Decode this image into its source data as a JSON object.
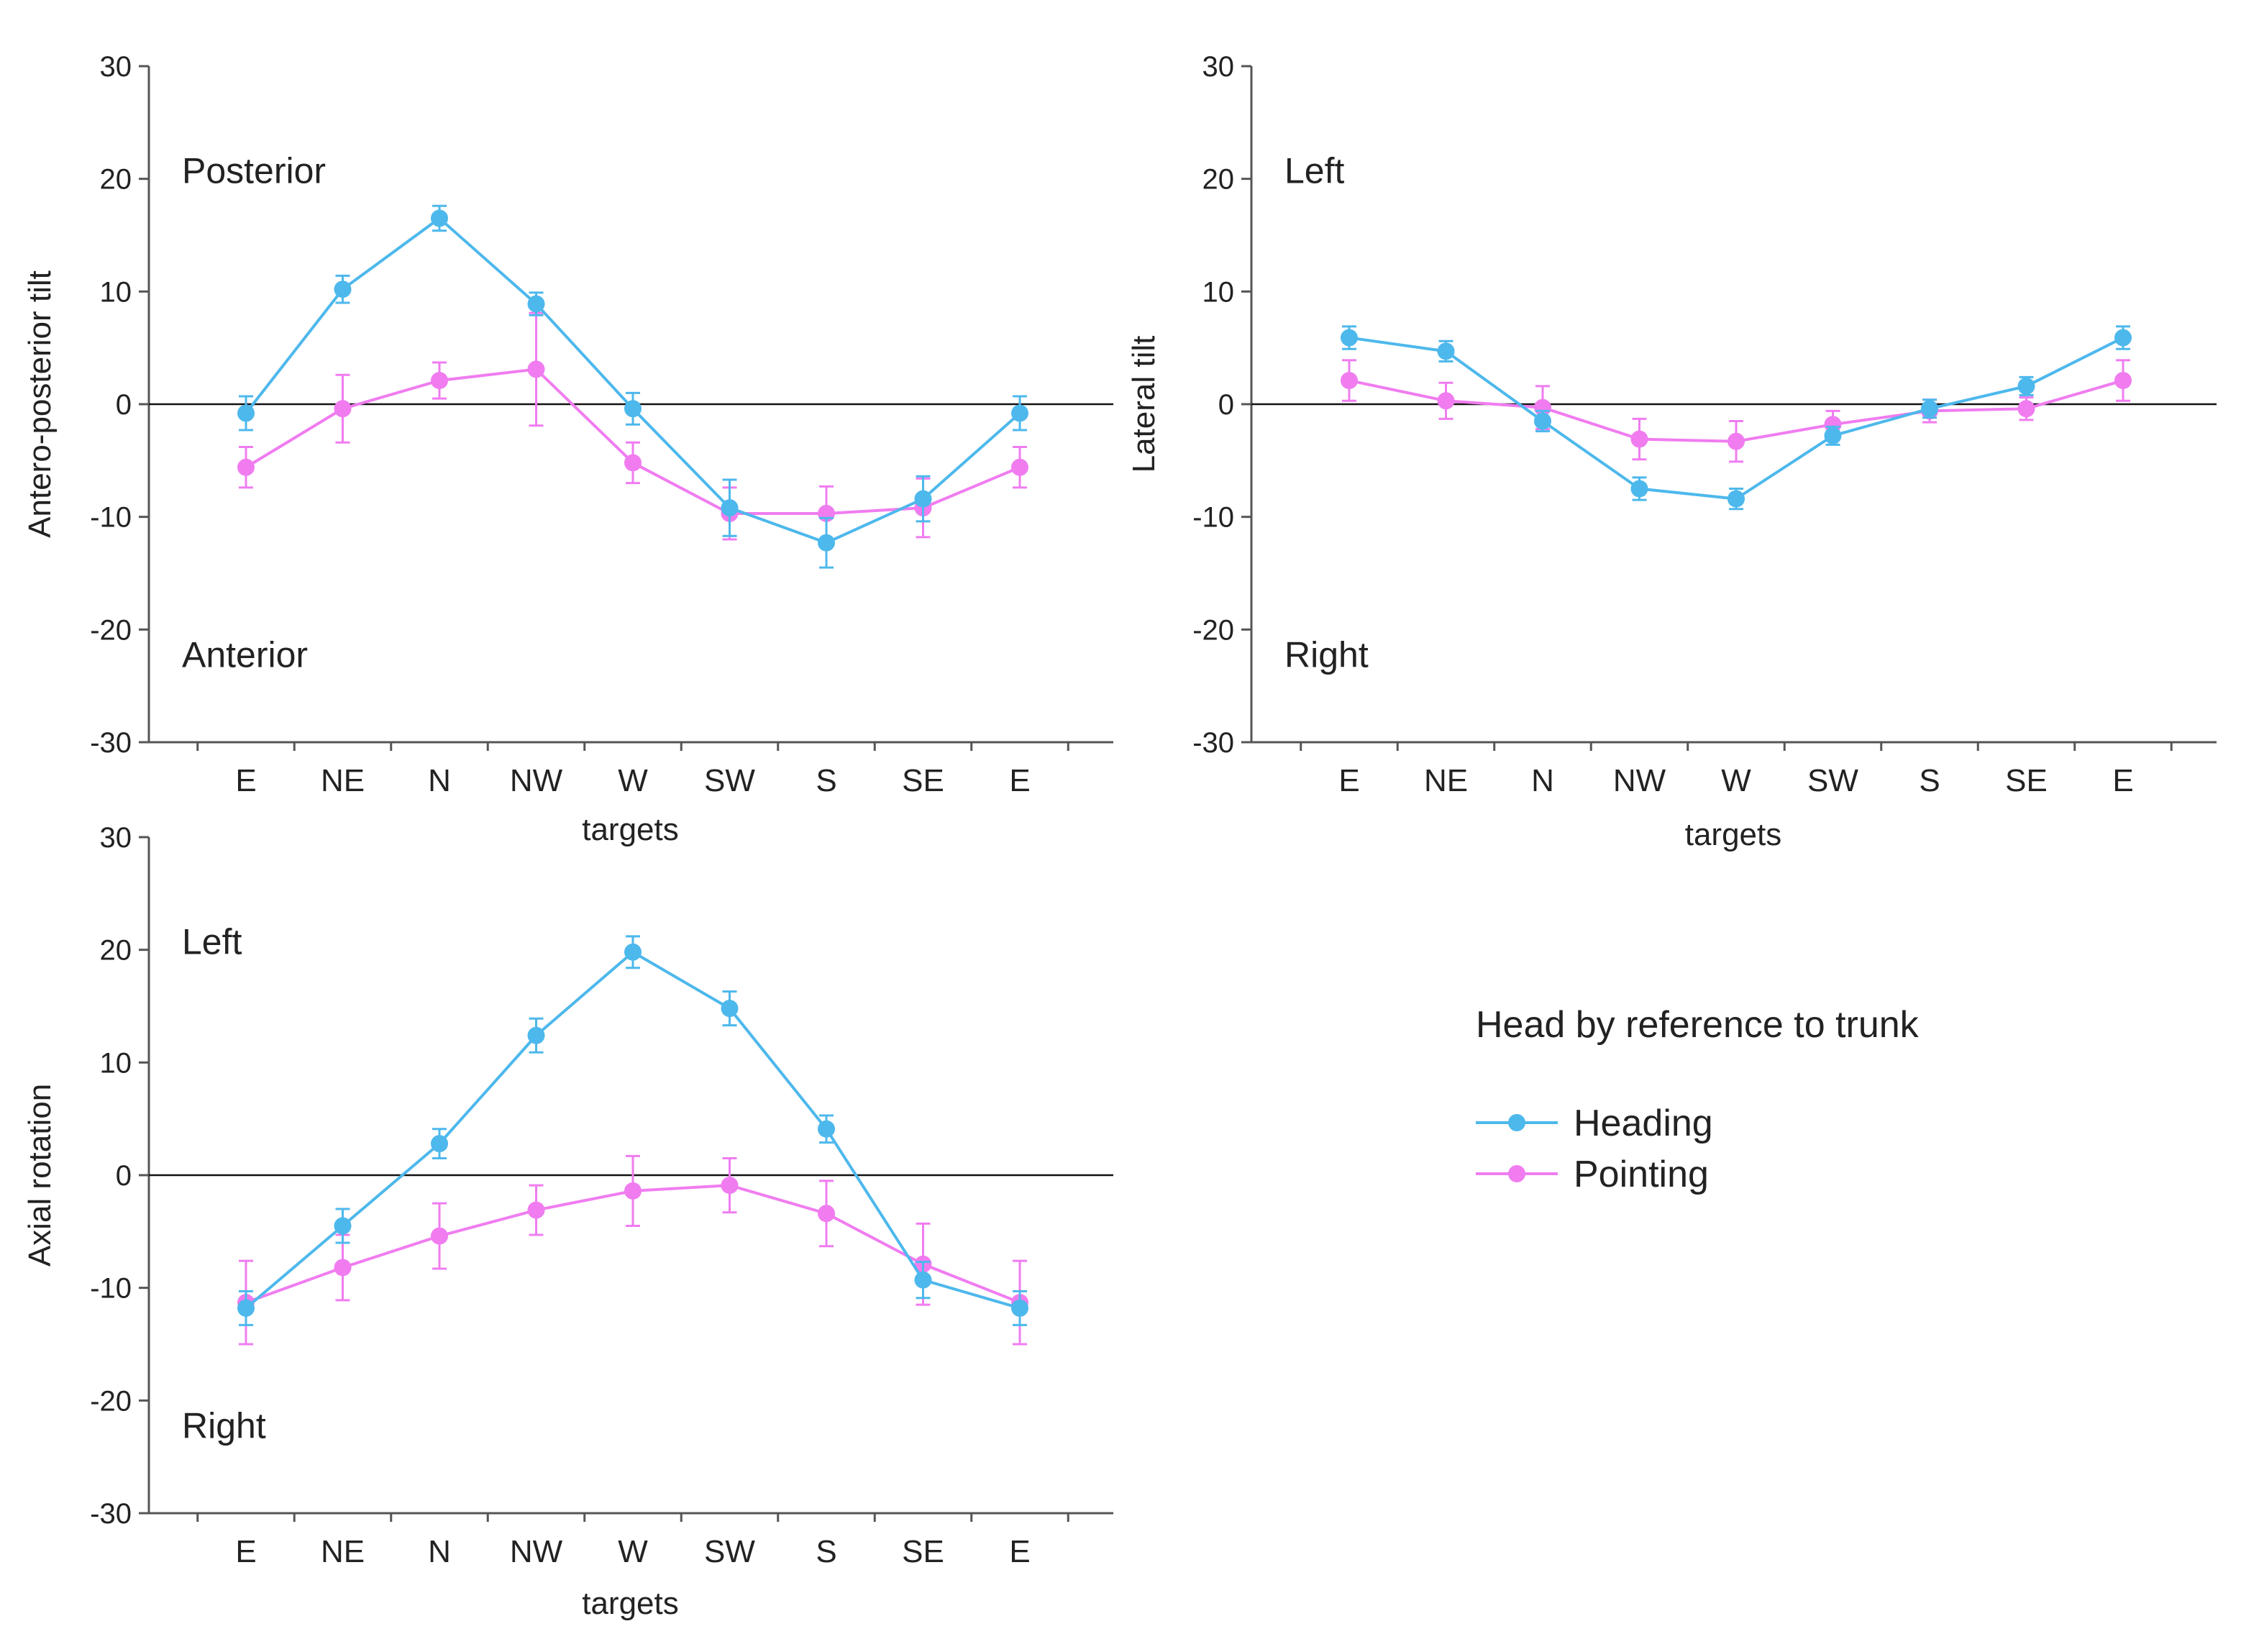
{
  "colors": {
    "heading": "#4DB8EC",
    "pointing": "#F07CF0",
    "axis": "#555555",
    "zero_line": "#111111"
  },
  "legend": {
    "title": "Head by reference to trunk",
    "heading_label": "Heading",
    "pointing_label": "Pointing"
  },
  "chart_data": [
    {
      "type": "line",
      "panel": "top-left",
      "categories": [
        "E",
        "NE",
        "N",
        "NW",
        "W",
        "SW",
        "S",
        "SE",
        "E"
      ],
      "xlabel": "targets",
      "ylabel": "Antero-posterior tilt",
      "ylim": [
        -30,
        30
      ],
      "yticks": [
        30,
        20,
        10,
        0,
        -10,
        -20,
        -30
      ],
      "region_top": "Posterior",
      "region_bottom": "Anterior",
      "series": [
        {
          "name": "Heading",
          "values": [
            -0.8,
            10.2,
            16.5,
            8.9,
            -0.4,
            -9.2,
            -12.3,
            -8.4,
            -0.8
          ],
          "errors": [
            1.5,
            1.2,
            1.1,
            1.0,
            1.4,
            2.5,
            2.2,
            2.0,
            1.5
          ]
        },
        {
          "name": "Pointing",
          "values": [
            -5.6,
            -0.4,
            2.1,
            3.1,
            -5.2,
            -9.7,
            -9.7,
            -9.2,
            -5.6
          ],
          "errors": [
            1.8,
            3.0,
            1.6,
            5.0,
            1.8,
            2.3,
            2.4,
            2.6,
            1.8
          ]
        }
      ]
    },
    {
      "type": "line",
      "panel": "top-right",
      "categories": [
        "E",
        "NE",
        "N",
        "NW",
        "W",
        "SW",
        "S",
        "SE",
        "E"
      ],
      "xlabel": "targets",
      "ylabel": "Lateral tilt",
      "ylim": [
        -30,
        30
      ],
      "yticks": [
        30,
        20,
        10,
        0,
        -10,
        -20,
        -30
      ],
      "region_top": "Left",
      "region_bottom": "Right",
      "series": [
        {
          "name": "Heading",
          "values": [
            5.9,
            4.7,
            -1.5,
            -7.5,
            -8.4,
            -2.8,
            -0.4,
            1.6,
            5.9
          ],
          "errors": [
            1.0,
            0.9,
            0.9,
            1.0,
            0.9,
            0.8,
            0.8,
            0.8,
            1.0
          ]
        },
        {
          "name": "Pointing",
          "values": [
            2.1,
            0.3,
            -0.3,
            -3.1,
            -3.3,
            -1.8,
            -0.6,
            -0.4,
            2.1
          ],
          "errors": [
            1.8,
            1.6,
            1.9,
            1.8,
            1.8,
            1.2,
            1.0,
            1.0,
            1.8
          ]
        }
      ]
    },
    {
      "type": "line",
      "panel": "bottom-left",
      "categories": [
        "E",
        "NE",
        "N",
        "NW",
        "W",
        "SW",
        "S",
        "SE",
        "E"
      ],
      "xlabel": "targets",
      "ylabel": "Axial rotation",
      "ylim": [
        -30,
        30
      ],
      "yticks": [
        30,
        20,
        10,
        0,
        -10,
        -20,
        -30
      ],
      "region_top": "Left",
      "region_bottom": "Right",
      "series": [
        {
          "name": "Heading",
          "values": [
            -11.8,
            -4.5,
            2.8,
            12.4,
            19.8,
            14.8,
            4.1,
            -9.3,
            -11.8
          ],
          "errors": [
            1.5,
            1.5,
            1.3,
            1.5,
            1.4,
            1.5,
            1.2,
            1.6,
            1.5
          ]
        },
        {
          "name": "Pointing",
          "values": [
            -11.3,
            -8.2,
            -5.4,
            -3.1,
            -1.4,
            -0.9,
            -3.4,
            -7.9,
            -11.3
          ],
          "errors": [
            3.7,
            2.9,
            2.9,
            2.2,
            3.1,
            2.4,
            2.9,
            3.6,
            3.7
          ]
        }
      ]
    }
  ]
}
